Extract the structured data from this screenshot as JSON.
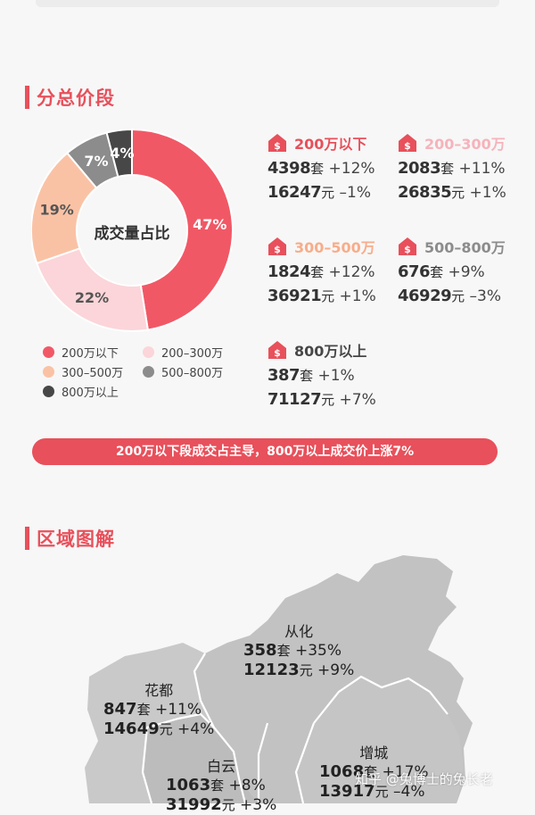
{
  "section1": {
    "title": "分总价段"
  },
  "chart_data": {
    "type": "pie",
    "title": "成交量占比",
    "categories": [
      "200万以下",
      "200-300万",
      "300-500万",
      "500-800万",
      "800万以上"
    ],
    "values": [
      47,
      22,
      19,
      7,
      4
    ],
    "value_labels": [
      "47%",
      "22%",
      "19%",
      "7%",
      "4%"
    ],
    "colors": [
      "#f15866",
      "#fbd5d9",
      "#fac2a5",
      "#8c8c8c",
      "#474747"
    ],
    "label_colors": [
      "#ffffff",
      "#555555",
      "#555555",
      "#ffffff",
      "#ffffff"
    ],
    "legend_position": "bottom"
  },
  "legend": [
    {
      "label": "200万以下",
      "color": "#f15866"
    },
    {
      "label": "200–300万",
      "color": "#fbd5d9"
    },
    {
      "label": "300–500万",
      "color": "#fac2a5"
    },
    {
      "label": "500–800万",
      "color": "#8c8c8c"
    },
    {
      "label": "800万以上",
      "color": "#474747"
    }
  ],
  "price_segments": [
    {
      "label": "200万以下",
      "label_color": "#e8505b",
      "volume": "4398",
      "volume_unit": "套",
      "volume_change": "+12%",
      "price": "16247",
      "price_unit": "元",
      "price_change": "–1%"
    },
    {
      "label": "200–300万",
      "label_color": "#f6b3bb",
      "volume": "2083",
      "volume_unit": "套",
      "volume_change": "+11%",
      "price": "26835",
      "price_unit": "元",
      "price_change": "+1%"
    },
    {
      "label": "300–500万",
      "label_color": "#f7ad8a",
      "volume": "1824",
      "volume_unit": "套",
      "volume_change": "+12%",
      "price": "36921",
      "price_unit": "元",
      "price_change": "+1%"
    },
    {
      "label": "500–800万",
      "label_color": "#8c8c8c",
      "volume": "676",
      "volume_unit": "套",
      "volume_change": "+9%",
      "price": "46929",
      "price_unit": "元",
      "price_change": "–3%"
    },
    {
      "label": "800万以上",
      "label_color": "#474747",
      "volume": "387",
      "volume_unit": "套",
      "volume_change": "+1%",
      "price": "71127",
      "price_unit": "元",
      "price_change": "+7%"
    }
  ],
  "banner": "200万以下段成交占主导，800万以上成交价上涨7%",
  "section2": {
    "title": "区域图解"
  },
  "regions": [
    {
      "name": "从化",
      "volume": "358",
      "volume_unit": "套",
      "volume_change": "+35%",
      "price": "12123",
      "price_unit": "元",
      "price_change": "+9%"
    },
    {
      "name": "花都",
      "volume": "847",
      "volume_unit": "套",
      "volume_change": "+11%",
      "price": "14649",
      "price_unit": "元",
      "price_change": "+4%"
    },
    {
      "name": "白云",
      "volume": "1063",
      "volume_unit": "套",
      "volume_change": "+8%",
      "price": "31992",
      "price_unit": "元",
      "price_change": "+3%"
    },
    {
      "name": "增城",
      "volume": "1068",
      "volume_unit": "套",
      "volume_change": "+17%",
      "price": "13917",
      "price_unit": "元",
      "price_change": "–4%"
    }
  ],
  "watermark": "知乎 @兔博士的兔长老"
}
